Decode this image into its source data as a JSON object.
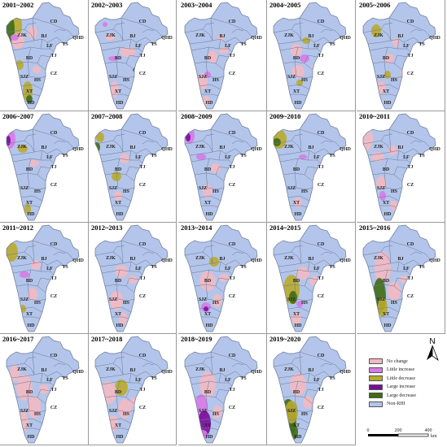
{
  "panels": [
    {
      "title": "2001~2002"
    },
    {
      "title": "2002~2003"
    },
    {
      "title": "2003~2004"
    },
    {
      "title": "2004~2005"
    },
    {
      "title": "2005~2006"
    },
    {
      "title": "2006~2007"
    },
    {
      "title": "2007~2008"
    },
    {
      "title": "2008~2009"
    },
    {
      "title": "2009~2010"
    },
    {
      "title": "2010~2011"
    },
    {
      "title": "2011~2012"
    },
    {
      "title": "2012~2013"
    },
    {
      "title": "2013~2014"
    },
    {
      "title": "2014~2015"
    },
    {
      "title": "2015~2016"
    },
    {
      "title": "2016~2017"
    },
    {
      "title": "2017~2018"
    },
    {
      "title": "2018~2019"
    },
    {
      "title": "2019~2020"
    }
  ],
  "city_labels": [
    "CD",
    "ZJK",
    "QHD",
    "BJ",
    "LF",
    "TS",
    "TJ",
    "BD",
    "CZ",
    "SJZ",
    "HS",
    "XT",
    "HD"
  ],
  "legend": {
    "north_label": "N",
    "items": [
      {
        "label": "No change",
        "color": "#f2b9c2"
      },
      {
        "label": "Little increase",
        "color": "#d77ae8"
      },
      {
        "label": "Little decrease",
        "color": "#b9aa2c"
      },
      {
        "label": "Large increase",
        "color": "#7a0c9a"
      },
      {
        "label": "Large decrease",
        "color": "#3f6b12"
      },
      {
        "label": "Non-RHI",
        "color": "#b3c5ea"
      }
    ],
    "scale_ticks": [
      "0",
      "200",
      "400"
    ],
    "scale_unit": "km"
  },
  "colors": {
    "base": "#b3c5ea",
    "boundary": "#6d7896"
  }
}
